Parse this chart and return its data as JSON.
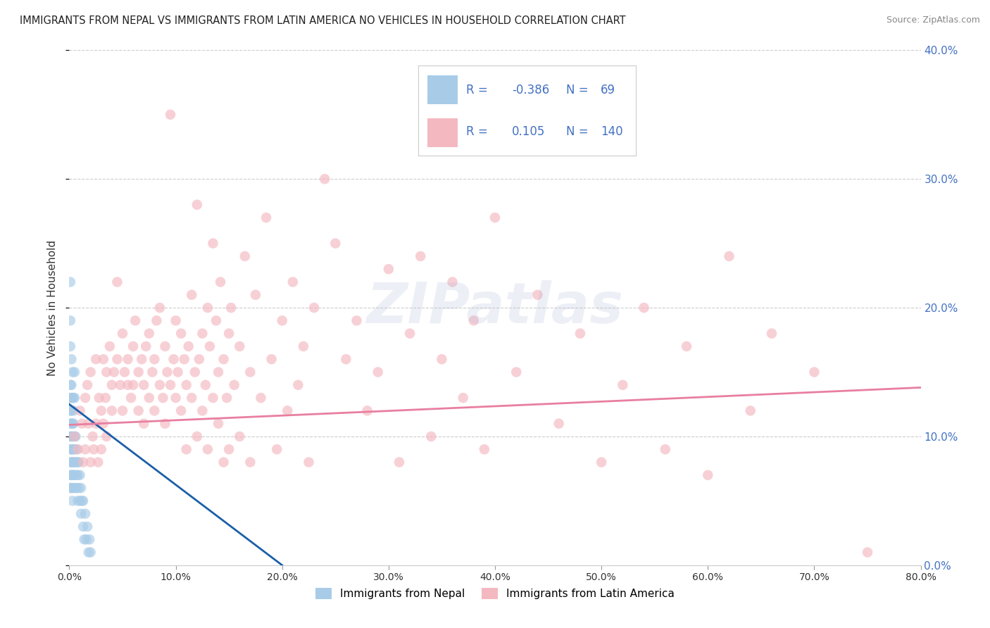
{
  "title": "IMMIGRANTS FROM NEPAL VS IMMIGRANTS FROM LATIN AMERICA NO VEHICLES IN HOUSEHOLD CORRELATION CHART",
  "source": "Source: ZipAtlas.com",
  "ylabel": "No Vehicles in Household",
  "xlim": [
    0,
    0.8
  ],
  "ylim": [
    0,
    0.4
  ],
  "xticks": [
    0.0,
    0.1,
    0.2,
    0.3,
    0.4,
    0.5,
    0.6,
    0.7,
    0.8
  ],
  "yticks": [
    0.0,
    0.1,
    0.2,
    0.3,
    0.4
  ],
  "nepal_R": -0.386,
  "nepal_N": 69,
  "latin_R": 0.105,
  "latin_N": 140,
  "nepal_color": "#a8cce8",
  "latin_color": "#f4b8c1",
  "nepal_line_color": "#1a5fa8",
  "latin_line_color": "#e87fa0",
  "label_color": "#4472C4",
  "text_dark": "#333333",
  "nepal_scatter": [
    [
      0.001,
      0.13
    ],
    [
      0.001,
      0.1
    ],
    [
      0.001,
      0.08
    ],
    [
      0.001,
      0.12
    ],
    [
      0.001,
      0.09
    ],
    [
      0.001,
      0.07
    ],
    [
      0.001,
      0.11
    ],
    [
      0.001,
      0.06
    ],
    [
      0.001,
      0.14
    ],
    [
      0.002,
      0.1
    ],
    [
      0.002,
      0.08
    ],
    [
      0.002,
      0.12
    ],
    [
      0.002,
      0.09
    ],
    [
      0.002,
      0.07
    ],
    [
      0.002,
      0.11
    ],
    [
      0.002,
      0.06
    ],
    [
      0.002,
      0.13
    ],
    [
      0.003,
      0.09
    ],
    [
      0.003,
      0.07
    ],
    [
      0.003,
      0.11
    ],
    [
      0.003,
      0.08
    ],
    [
      0.003,
      0.06
    ],
    [
      0.003,
      0.1
    ],
    [
      0.003,
      0.05
    ],
    [
      0.004,
      0.08
    ],
    [
      0.004,
      0.09
    ],
    [
      0.004,
      0.07
    ],
    [
      0.004,
      0.11
    ],
    [
      0.004,
      0.06
    ],
    [
      0.005,
      0.08
    ],
    [
      0.005,
      0.1
    ],
    [
      0.005,
      0.07
    ],
    [
      0.005,
      0.09
    ],
    [
      0.006,
      0.08
    ],
    [
      0.006,
      0.06
    ],
    [
      0.006,
      0.1
    ],
    [
      0.007,
      0.07
    ],
    [
      0.007,
      0.09
    ],
    [
      0.007,
      0.06
    ],
    [
      0.008,
      0.08
    ],
    [
      0.008,
      0.05
    ],
    [
      0.008,
      0.07
    ],
    [
      0.009,
      0.06
    ],
    [
      0.009,
      0.08
    ],
    [
      0.01,
      0.05
    ],
    [
      0.01,
      0.07
    ],
    [
      0.011,
      0.04
    ],
    [
      0.011,
      0.06
    ],
    [
      0.012,
      0.05
    ],
    [
      0.013,
      0.03
    ],
    [
      0.013,
      0.05
    ],
    [
      0.014,
      0.02
    ],
    [
      0.015,
      0.04
    ],
    [
      0.016,
      0.02
    ],
    [
      0.017,
      0.03
    ],
    [
      0.018,
      0.01
    ],
    [
      0.019,
      0.02
    ],
    [
      0.02,
      0.01
    ],
    [
      0.001,
      0.22
    ],
    [
      0.001,
      0.19
    ],
    [
      0.002,
      0.16
    ],
    [
      0.003,
      0.15
    ],
    [
      0.004,
      0.13
    ],
    [
      0.005,
      0.15
    ],
    [
      0.001,
      0.17
    ],
    [
      0.002,
      0.14
    ],
    [
      0.003,
      0.13
    ],
    [
      0.004,
      0.12
    ],
    [
      0.005,
      0.13
    ]
  ],
  "latin_scatter": [
    [
      0.005,
      0.1
    ],
    [
      0.008,
      0.09
    ],
    [
      0.01,
      0.12
    ],
    [
      0.012,
      0.11
    ],
    [
      0.013,
      0.08
    ],
    [
      0.015,
      0.13
    ],
    [
      0.015,
      0.09
    ],
    [
      0.017,
      0.14
    ],
    [
      0.018,
      0.11
    ],
    [
      0.02,
      0.08
    ],
    [
      0.02,
      0.15
    ],
    [
      0.022,
      0.1
    ],
    [
      0.023,
      0.09
    ],
    [
      0.025,
      0.11
    ],
    [
      0.025,
      0.16
    ],
    [
      0.027,
      0.08
    ],
    [
      0.028,
      0.13
    ],
    [
      0.03,
      0.12
    ],
    [
      0.03,
      0.09
    ],
    [
      0.032,
      0.16
    ],
    [
      0.032,
      0.11
    ],
    [
      0.034,
      0.13
    ],
    [
      0.035,
      0.1
    ],
    [
      0.035,
      0.15
    ],
    [
      0.038,
      0.17
    ],
    [
      0.04,
      0.14
    ],
    [
      0.04,
      0.12
    ],
    [
      0.042,
      0.15
    ],
    [
      0.045,
      0.16
    ],
    [
      0.045,
      0.22
    ],
    [
      0.048,
      0.14
    ],
    [
      0.05,
      0.18
    ],
    [
      0.05,
      0.12
    ],
    [
      0.052,
      0.15
    ],
    [
      0.055,
      0.14
    ],
    [
      0.055,
      0.16
    ],
    [
      0.058,
      0.13
    ],
    [
      0.06,
      0.17
    ],
    [
      0.06,
      0.14
    ],
    [
      0.062,
      0.19
    ],
    [
      0.065,
      0.15
    ],
    [
      0.065,
      0.12
    ],
    [
      0.068,
      0.16
    ],
    [
      0.07,
      0.14
    ],
    [
      0.07,
      0.11
    ],
    [
      0.072,
      0.17
    ],
    [
      0.075,
      0.13
    ],
    [
      0.075,
      0.18
    ],
    [
      0.078,
      0.15
    ],
    [
      0.08,
      0.16
    ],
    [
      0.08,
      0.12
    ],
    [
      0.082,
      0.19
    ],
    [
      0.085,
      0.14
    ],
    [
      0.085,
      0.2
    ],
    [
      0.088,
      0.13
    ],
    [
      0.09,
      0.17
    ],
    [
      0.09,
      0.11
    ],
    [
      0.092,
      0.15
    ],
    [
      0.095,
      0.35
    ],
    [
      0.095,
      0.14
    ],
    [
      0.098,
      0.16
    ],
    [
      0.1,
      0.13
    ],
    [
      0.1,
      0.19
    ],
    [
      0.102,
      0.15
    ],
    [
      0.105,
      0.18
    ],
    [
      0.105,
      0.12
    ],
    [
      0.108,
      0.16
    ],
    [
      0.11,
      0.14
    ],
    [
      0.11,
      0.09
    ],
    [
      0.112,
      0.17
    ],
    [
      0.115,
      0.13
    ],
    [
      0.115,
      0.21
    ],
    [
      0.118,
      0.15
    ],
    [
      0.12,
      0.1
    ],
    [
      0.12,
      0.28
    ],
    [
      0.122,
      0.16
    ],
    [
      0.125,
      0.18
    ],
    [
      0.125,
      0.12
    ],
    [
      0.128,
      0.14
    ],
    [
      0.13,
      0.2
    ],
    [
      0.13,
      0.09
    ],
    [
      0.132,
      0.17
    ],
    [
      0.135,
      0.25
    ],
    [
      0.135,
      0.13
    ],
    [
      0.138,
      0.19
    ],
    [
      0.14,
      0.11
    ],
    [
      0.14,
      0.15
    ],
    [
      0.142,
      0.22
    ],
    [
      0.145,
      0.16
    ],
    [
      0.145,
      0.08
    ],
    [
      0.148,
      0.13
    ],
    [
      0.15,
      0.18
    ],
    [
      0.15,
      0.09
    ],
    [
      0.152,
      0.2
    ],
    [
      0.155,
      0.14
    ],
    [
      0.16,
      0.17
    ],
    [
      0.16,
      0.1
    ],
    [
      0.165,
      0.24
    ],
    [
      0.17,
      0.15
    ],
    [
      0.17,
      0.08
    ],
    [
      0.175,
      0.21
    ],
    [
      0.18,
      0.13
    ],
    [
      0.185,
      0.27
    ],
    [
      0.19,
      0.16
    ],
    [
      0.195,
      0.09
    ],
    [
      0.2,
      0.19
    ],
    [
      0.205,
      0.12
    ],
    [
      0.21,
      0.22
    ],
    [
      0.215,
      0.14
    ],
    [
      0.22,
      0.17
    ],
    [
      0.225,
      0.08
    ],
    [
      0.23,
      0.2
    ],
    [
      0.24,
      0.3
    ],
    [
      0.25,
      0.25
    ],
    [
      0.26,
      0.16
    ],
    [
      0.27,
      0.19
    ],
    [
      0.28,
      0.12
    ],
    [
      0.29,
      0.15
    ],
    [
      0.3,
      0.23
    ],
    [
      0.31,
      0.08
    ],
    [
      0.32,
      0.18
    ],
    [
      0.33,
      0.24
    ],
    [
      0.34,
      0.1
    ],
    [
      0.35,
      0.16
    ],
    [
      0.36,
      0.22
    ],
    [
      0.37,
      0.13
    ],
    [
      0.38,
      0.19
    ],
    [
      0.39,
      0.09
    ],
    [
      0.4,
      0.27
    ],
    [
      0.42,
      0.15
    ],
    [
      0.44,
      0.21
    ],
    [
      0.46,
      0.11
    ],
    [
      0.48,
      0.18
    ],
    [
      0.5,
      0.08
    ],
    [
      0.52,
      0.14
    ],
    [
      0.54,
      0.2
    ],
    [
      0.56,
      0.09
    ],
    [
      0.58,
      0.17
    ],
    [
      0.6,
      0.07
    ],
    [
      0.62,
      0.24
    ],
    [
      0.64,
      0.12
    ],
    [
      0.66,
      0.18
    ],
    [
      0.7,
      0.15
    ],
    [
      0.75,
      0.01
    ]
  ],
  "watermark": "ZIPatlas",
  "legend_nepal_label": "Immigrants from Nepal",
  "legend_latin_label": "Immigrants from Latin America",
  "nepal_line_x": [
    0.0,
    0.2
  ],
  "nepal_line_y": [
    0.125,
    0.0
  ],
  "latin_line_x": [
    0.0,
    0.8
  ],
  "latin_line_y": [
    0.109,
    0.138
  ]
}
